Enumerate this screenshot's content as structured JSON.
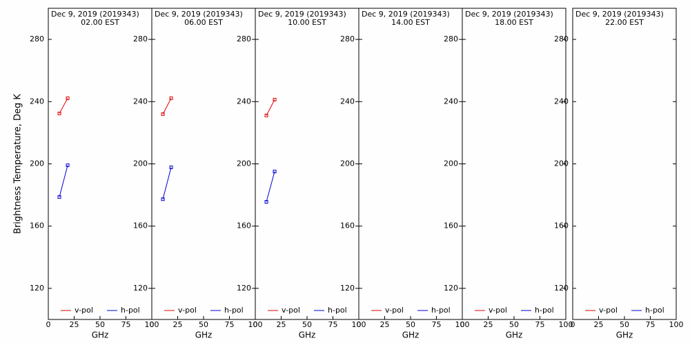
{
  "chart_data": [
    {
      "type": "line",
      "title": "Dec  9, 2019 (2019343)",
      "subtitle": "02.00 EST",
      "xlabel": "GHz",
      "ylabel": "Brightness Temperature, Deg K",
      "x": [
        10.7,
        18.7
      ],
      "series": [
        {
          "name": "v-pol",
          "color": "#e00000",
          "values": [
            232.4,
            242.2
          ]
        },
        {
          "name": "h-pol",
          "color": "#0000d0",
          "values": [
            178.7,
            199.1
          ]
        }
      ],
      "xlim": [
        0,
        100
      ],
      "xticks": [
        0,
        25,
        50,
        75,
        100
      ],
      "ylim": [
        100,
        300
      ],
      "yticks": [
        120,
        160,
        200,
        240,
        280
      ]
    },
    {
      "type": "line",
      "title": "Dec  9, 2019 (2019343)",
      "subtitle": "06.00 EST",
      "xlabel": "GHz",
      "x": [
        10.7,
        18.7
      ],
      "series": [
        {
          "name": "v-pol",
          "color": "#e00000",
          "values": [
            232.0,
            242.2
          ]
        },
        {
          "name": "h-pol",
          "color": "#0000d0",
          "values": [
            177.3,
            197.8
          ]
        }
      ],
      "xlim": [
        0,
        100
      ],
      "xticks": [
        0,
        25,
        50,
        75,
        100
      ],
      "ylim": [
        100,
        300
      ],
      "yticks": [
        120,
        160,
        200,
        240,
        280
      ]
    },
    {
      "type": "line",
      "title": "Dec  9, 2019 (2019343)",
      "subtitle": "10.00 EST",
      "xlabel": "GHz",
      "x": [
        10.7,
        18.7
      ],
      "series": [
        {
          "name": "v-pol",
          "color": "#e00000",
          "values": [
            231.1,
            241.3
          ]
        },
        {
          "name": "h-pol",
          "color": "#0000d0",
          "values": [
            175.6,
            195.1
          ]
        }
      ],
      "xlim": [
        0,
        100
      ],
      "xticks": [
        0,
        25,
        50,
        75,
        100
      ],
      "ylim": [
        100,
        300
      ],
      "yticks": [
        120,
        160,
        200,
        240,
        280
      ]
    },
    {
      "type": "line",
      "title": "Dec  9, 2019 (2019343)",
      "subtitle": "14.00 EST",
      "xlabel": "GHz",
      "x": [
        10.7,
        18.7
      ],
      "series": [
        {
          "name": "v-pol",
          "color": "#e00000",
          "values": [
            null,
            null
          ]
        },
        {
          "name": "h-pol",
          "color": "#0000d0",
          "values": [
            null,
            null
          ]
        }
      ],
      "xlim": [
        0,
        100
      ],
      "xticks": [
        0,
        25,
        50,
        75,
        100
      ],
      "ylim": [
        100,
        300
      ],
      "yticks": [
        120,
        160,
        200,
        240,
        280
      ]
    },
    {
      "type": "line",
      "title": "Dec  9, 2019 (2019343)",
      "subtitle": "18.00 EST",
      "xlabel": "GHz",
      "x": [
        10.7,
        18.7
      ],
      "series": [
        {
          "name": "v-pol",
          "color": "#e00000",
          "values": [
            null,
            null
          ]
        },
        {
          "name": "h-pol",
          "color": "#0000d0",
          "values": [
            null,
            null
          ]
        }
      ],
      "xlim": [
        0,
        100
      ],
      "xticks": [
        0,
        25,
        50,
        75,
        100
      ],
      "ylim": [
        100,
        300
      ],
      "yticks": [
        120,
        160,
        200,
        240,
        280
      ]
    },
    {
      "type": "line",
      "title": "Dec  9, 2019 (2019343)",
      "subtitle": "22.00 EST",
      "xlabel": "GHz",
      "x": [
        10.7,
        18.7
      ],
      "series": [
        {
          "name": "v-pol",
          "color": "#e00000",
          "values": [
            null,
            null
          ]
        },
        {
          "name": "h-pol",
          "color": "#0000d0",
          "values": [
            null,
            null
          ]
        }
      ],
      "xlim": [
        0,
        100
      ],
      "xticks": [
        0,
        25,
        50,
        75,
        100
      ],
      "ylim": [
        100,
        300
      ],
      "yticks": [
        120,
        160,
        200,
        240,
        280
      ]
    }
  ]
}
